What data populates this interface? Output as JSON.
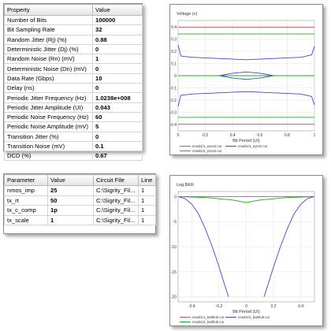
{
  "property_table": {
    "headers": [
      "Property",
      "Value"
    ],
    "rows": [
      [
        "Number of Bits",
        "100000"
      ],
      [
        "Bit Sampling Rate",
        "32"
      ],
      [
        "Random Jitter (Rj) (%)",
        "0.88"
      ],
      [
        "Deterministic Jitter (Dj) (%)",
        "0"
      ],
      [
        "Random Noise (Rn) (mV)",
        "1"
      ],
      [
        "Deterministic Noise (Dn) (mV)",
        "0"
      ],
      [
        "Data Rate (Gbps)",
        "10"
      ],
      [
        "Delay (ns)",
        "0"
      ],
      [
        "Periodic Jitter Frequency (Hz)",
        "1.0238e+008"
      ],
      [
        "Periodic Jitter Amplitude (UI)",
        "0.043"
      ],
      [
        "Periodic Noise Frequency (Hz)",
        "60"
      ],
      [
        "Periodic Noise Amplitude (mV)",
        "5"
      ],
      [
        "Transition Jitter (%)",
        "0"
      ],
      [
        "Transition Noise (mV)",
        "0.1"
      ],
      [
        "DCD (%)",
        "0.67"
      ]
    ]
  },
  "parameter_table": {
    "headers": [
      "Parameter",
      "Value",
      "Circuit File",
      "Line"
    ],
    "rows": [
      [
        "nmos_imp",
        "25",
        "C:\\Sigrity_Fil...",
        "1"
      ],
      [
        "tx_rt",
        "50",
        "C:\\Sigrity_Fil...",
        "1"
      ],
      [
        "tx_c_comp",
        "1p",
        "C:\\Sigrity_Fil...",
        "1"
      ],
      [
        "tx_scale",
        "1",
        "C:\\Sigrity_Fil...",
        "1"
      ]
    ]
  },
  "chart_data": [
    {
      "type": "line",
      "title": "",
      "ylabel": "Voltage (v)",
      "xlabel": "Bit Period (UI)",
      "xlim": [
        0,
        1
      ],
      "ylim": [
        -0.45,
        0.45
      ],
      "xticks": [
        "0",
        "0.2",
        "0.4",
        "0.6",
        "0.8",
        "1"
      ],
      "yticks": [
        "0.4",
        "0.3",
        "0.2",
        "0.1",
        "0",
        "-0.1",
        "-0.2",
        "-0.3",
        "-0.4"
      ],
      "grid": true,
      "legend": [
        "result1\\1_eyectr.cur",
        "result1\\1_eyectr.cur",
        "result1\\2_eyectr.cur"
      ],
      "colors": {
        "red": "#e05050",
        "blue": "#4444dd",
        "green": "#22aa22"
      },
      "series": [
        {
          "color": "red",
          "x": [
            0,
            1
          ],
          "y": [
            0.395,
            0.395
          ]
        },
        {
          "color": "red",
          "x": [
            0,
            1
          ],
          "y": [
            -0.395,
            -0.395
          ]
        },
        {
          "color": "green",
          "x": [
            0,
            1
          ],
          "y": [
            0.34,
            0.34
          ]
        },
        {
          "color": "green",
          "x": [
            0,
            1
          ],
          "y": [
            -0.34,
            -0.34
          ]
        },
        {
          "color": "blue",
          "x": [
            0,
            0.02,
            0.1,
            0.3,
            0.5,
            0.7,
            0.9,
            0.98,
            1
          ],
          "y": [
            0.25,
            0.16,
            0.15,
            0.14,
            0.13,
            0.14,
            0.15,
            0.17,
            0.24
          ]
        },
        {
          "color": "blue",
          "x": [
            0,
            0.02,
            0.1,
            0.3,
            0.5,
            0.7,
            0.9,
            0.98,
            1
          ],
          "y": [
            -0.25,
            -0.16,
            -0.15,
            -0.14,
            -0.13,
            -0.14,
            -0.15,
            -0.17,
            -0.24
          ]
        },
        {
          "color": "blue",
          "x": [
            0.3,
            0.4,
            0.5,
            0.6,
            0.7
          ],
          "y": [
            0,
            0.02,
            0.03,
            0.02,
            0
          ]
        },
        {
          "color": "blue",
          "x": [
            0.3,
            0.4,
            0.5,
            0.6,
            0.7
          ],
          "y": [
            0,
            -0.02,
            -0.03,
            -0.02,
            0
          ]
        },
        {
          "color": "green",
          "x": [
            0,
            1
          ],
          "y": [
            0,
            0
          ]
        }
      ]
    },
    {
      "type": "line",
      "title": "",
      "ylabel": "Log BER",
      "xlabel": "Bit Period (UI)",
      "xlim": [
        -0.5,
        0.5
      ],
      "ylim": [
        -21,
        1
      ],
      "xticks": [
        "-0.4",
        "-0.2",
        "0",
        "0.2",
        "0.4"
      ],
      "yticks": [
        "0",
        "-5",
        "-10",
        "-15",
        "-20"
      ],
      "grid": true,
      "legend": [
        "result1\\1_bathtub.cur",
        "result1\\2_bathtub.cur",
        "result1\\2_bathtub.cur"
      ],
      "colors": {
        "red": "#e05050",
        "blue": "#4444dd",
        "green": "#22aa22"
      },
      "series": [
        {
          "color": "blue",
          "x": [
            -0.5,
            -0.45,
            -0.4,
            -0.35,
            -0.3,
            -0.25,
            -0.2,
            -0.16,
            -0.13
          ],
          "y": [
            0,
            -0.4,
            -1.5,
            -3.5,
            -6.5,
            -10,
            -14,
            -17.5,
            -20
          ]
        },
        {
          "color": "blue",
          "x": [
            0.13,
            0.16,
            0.2,
            0.25,
            0.3,
            0.35,
            0.4,
            0.45,
            0.5
          ],
          "y": [
            -20,
            -17.5,
            -14,
            -10,
            -6.5,
            -3.5,
            -1.5,
            -0.4,
            0
          ]
        },
        {
          "color": "green",
          "x": [
            -0.5,
            -0.3,
            -0.1,
            0,
            0.1,
            0.3,
            0.5
          ],
          "y": [
            0,
            -0.2,
            -0.7,
            -1.2,
            -0.7,
            -0.2,
            0
          ]
        },
        {
          "color": "red",
          "x": [
            -0.5,
            0.5
          ],
          "y": [
            0,
            0
          ]
        }
      ]
    }
  ]
}
